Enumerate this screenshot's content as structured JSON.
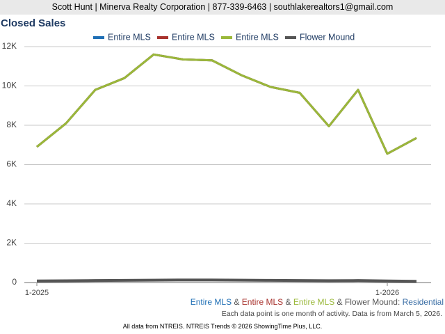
{
  "header": "Scott Hunt | Minerva Realty Corporation | 877-339-6463 | southlakerealtors1@gmail.com",
  "chart_data": {
    "type": "line",
    "title": "Closed Sales",
    "categories": [
      "1-2025",
      null,
      null,
      null,
      null,
      null,
      null,
      null,
      null,
      null,
      null,
      null,
      "1-2026",
      null
    ],
    "series": [
      {
        "name": "Entire MLS",
        "color": "#1f6fb5",
        "values": [
          6900,
          8100,
          9800,
          10400,
          11600,
          11350,
          11300,
          10550,
          9950,
          9650,
          7950,
          9800,
          6550,
          7350
        ]
      },
      {
        "name": "Entire MLS",
        "color": "#a8322d",
        "values": [
          6900,
          8100,
          9800,
          10400,
          11600,
          11350,
          11300,
          10550,
          9950,
          9650,
          7950,
          9800,
          6550,
          7350
        ]
      },
      {
        "name": "Entire MLS",
        "color": "#9ab83a",
        "values": [
          6900,
          8100,
          9800,
          10400,
          11600,
          11350,
          11300,
          10550,
          9950,
          9650,
          7950,
          9800,
          6550,
          7350
        ]
      },
      {
        "name": "Flower Mound",
        "color": "#555555",
        "values": [
          80,
          90,
          100,
          110,
          120,
          130,
          130,
          120,
          110,
          100,
          95,
          100,
          80,
          60
        ]
      }
    ],
    "ylim": [
      0,
      12000
    ],
    "yticks": [
      0,
      {
        "value": 2000,
        "label": "2K"
      },
      {
        "value": 4000,
        "label": "4K"
      },
      {
        "value": 6000,
        "label": "6K"
      },
      {
        "value": 8000,
        "label": "8K"
      },
      {
        "value": 10000,
        "label": "10K"
      },
      {
        "value": 12000,
        "label": "12K"
      }
    ],
    "grid": true,
    "caption_joiner": "&",
    "caption_separator": ":",
    "property_type": "Residential",
    "note": "Each data point is one month of activity. Data is from March 5, 2026.",
    "credit": "All data from NTREIS. NTREIS Trends © 2026 ShowingTime Plus, LLC."
  }
}
